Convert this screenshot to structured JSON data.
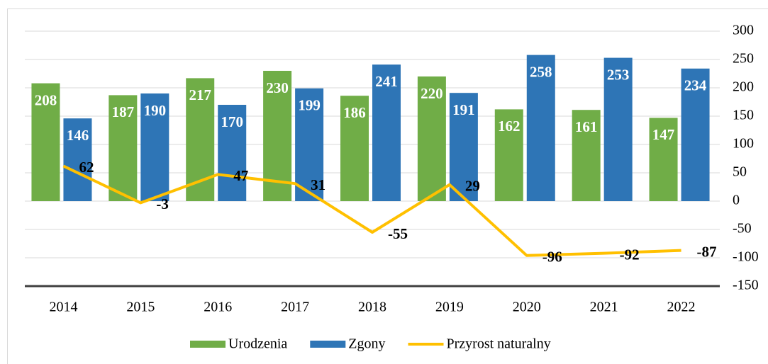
{
  "chart_data": {
    "type": "bar",
    "categories": [
      "2014",
      "2015",
      "2016",
      "2017",
      "2018",
      "2019",
      "2020",
      "2021",
      "2022"
    ],
    "series": [
      {
        "name": "Urodzenia",
        "type": "bar",
        "color": "#70ad47",
        "values": [
          208,
          187,
          217,
          230,
          186,
          220,
          162,
          161,
          147
        ]
      },
      {
        "name": "Zgony",
        "type": "bar",
        "color": "#2e75b6",
        "values": [
          146,
          190,
          170,
          199,
          241,
          191,
          258,
          253,
          234
        ]
      },
      {
        "name": "Przyrost naturalny",
        "type": "line",
        "color": "#ffc000",
        "values": [
          62,
          -3,
          47,
          31,
          -55,
          29,
          -96,
          -92,
          -87
        ]
      }
    ],
    "ylim": [
      -150,
      300
    ],
    "yticks": [
      300,
      250,
      200,
      150,
      100,
      50,
      0,
      -50,
      -100,
      -150
    ],
    "grid": true,
    "legend": "bottom"
  }
}
